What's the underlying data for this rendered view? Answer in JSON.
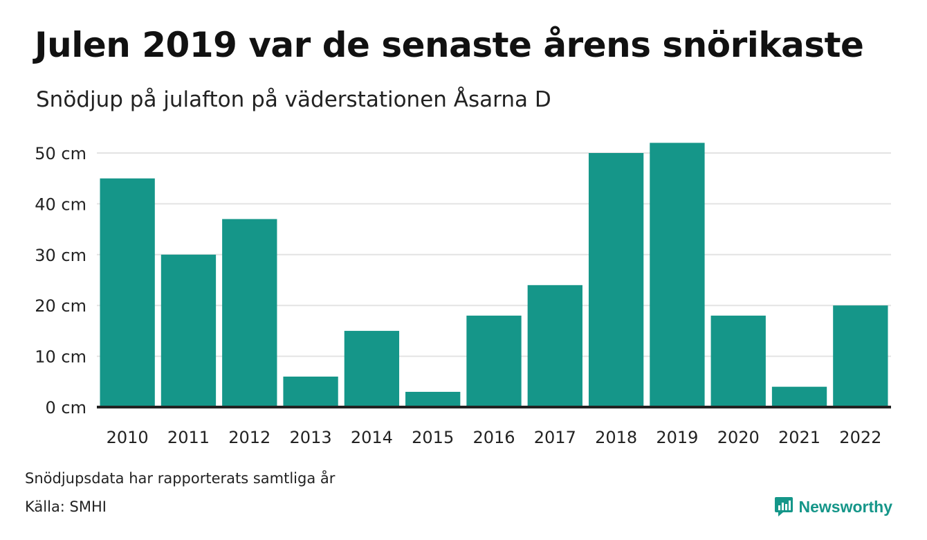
{
  "title": "Julen 2019 var de senaste årens snörikaste",
  "subtitle": "Snödjup på julafton på väderstationen Åsarna D",
  "note": "Snödjupsdata har rapporterats samtliga år",
  "source": "Källa: SMHI",
  "brand": {
    "name": "Newsworthy",
    "icon": "newsworthy-logo-icon",
    "color": "#159689"
  },
  "chart_data": {
    "type": "bar",
    "categories": [
      "2010",
      "2011",
      "2012",
      "2013",
      "2014",
      "2015",
      "2016",
      "2017",
      "2018",
      "2019",
      "2020",
      "2021",
      "2022"
    ],
    "values": [
      45,
      30,
      37,
      6,
      15,
      3,
      18,
      24,
      50,
      52,
      18,
      4,
      20
    ],
    "unit": "cm",
    "ylim": [
      0,
      50
    ],
    "yticks": [
      0,
      10,
      20,
      30,
      40,
      50
    ],
    "ytick_labels": [
      "0 cm",
      "10 cm",
      "20 cm",
      "30 cm",
      "40 cm",
      "50 cm"
    ],
    "grid": true,
    "colors": {
      "bar": "#159689",
      "grid": "#e3e3e3",
      "baseline": "#222222"
    }
  }
}
